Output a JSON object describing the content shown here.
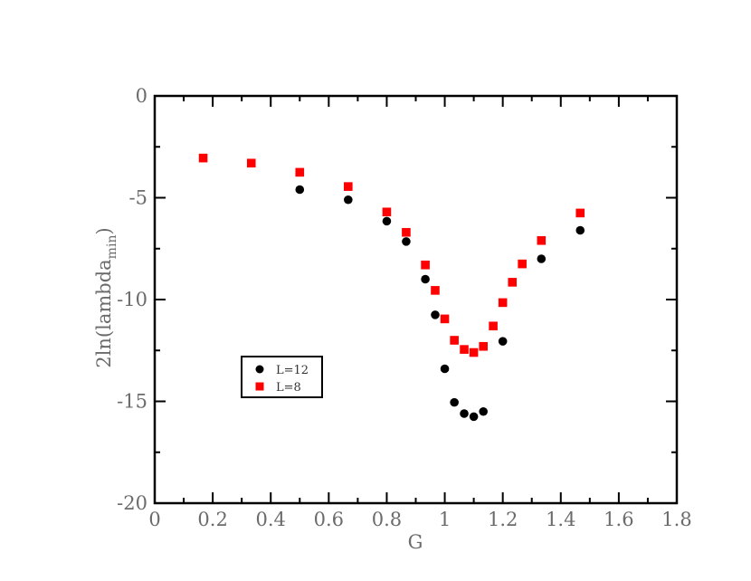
{
  "chart_data": {
    "type": "scatter",
    "xlabel": "G",
    "ylabel": "2ln(lambda_min)",
    "ylabel_main": "2ln(lambda",
    "ylabel_sub": "min",
    "ylabel_close": ")",
    "xlim": [
      0,
      1.8
    ],
    "ylim": [
      -20,
      0
    ],
    "x_ticks": [
      0,
      0.2,
      0.4,
      0.6,
      0.8,
      1,
      1.2,
      1.4,
      1.6,
      1.8
    ],
    "x_tick_labels": [
      "0",
      "0.2",
      "0.4",
      "0.6",
      "0.8",
      "1",
      "1.2",
      "1.4",
      "1.6",
      "1.8"
    ],
    "y_ticks": [
      0,
      -5,
      -10,
      -15,
      -20
    ],
    "y_tick_labels": [
      "0",
      "-5",
      "-10",
      "-15",
      "-20"
    ],
    "grid": false,
    "legend_position": "lower-left",
    "series": [
      {
        "name": "L=12",
        "marker": "circle",
        "color": "#000000",
        "points": [
          [
            0.5,
            -4.6
          ],
          [
            0.667,
            -5.1
          ],
          [
            0.8,
            -6.15
          ],
          [
            0.867,
            -7.15
          ],
          [
            0.933,
            -9.0
          ],
          [
            0.967,
            -10.75
          ],
          [
            1.0,
            -13.4
          ],
          [
            1.033,
            -15.05
          ],
          [
            1.067,
            -15.6
          ],
          [
            1.1,
            -15.75
          ],
          [
            1.133,
            -15.5
          ],
          [
            1.2,
            -12.05
          ],
          [
            1.333,
            -8.0
          ],
          [
            1.467,
            -6.6
          ]
        ]
      },
      {
        "name": "L=8",
        "marker": "square",
        "color": "#ff0000",
        "points": [
          [
            0.167,
            -3.05
          ],
          [
            0.333,
            -3.3
          ],
          [
            0.5,
            -3.75
          ],
          [
            0.667,
            -4.45
          ],
          [
            0.8,
            -5.7
          ],
          [
            0.867,
            -6.7
          ],
          [
            0.933,
            -8.3
          ],
          [
            0.967,
            -9.55
          ],
          [
            1.0,
            -10.95
          ],
          [
            1.033,
            -12.0
          ],
          [
            1.067,
            -12.45
          ],
          [
            1.1,
            -12.6
          ],
          [
            1.133,
            -12.3
          ],
          [
            1.167,
            -11.3
          ],
          [
            1.2,
            -10.15
          ],
          [
            1.233,
            -9.15
          ],
          [
            1.267,
            -8.25
          ],
          [
            1.333,
            -7.1
          ],
          [
            1.467,
            -5.75
          ]
        ]
      }
    ]
  }
}
